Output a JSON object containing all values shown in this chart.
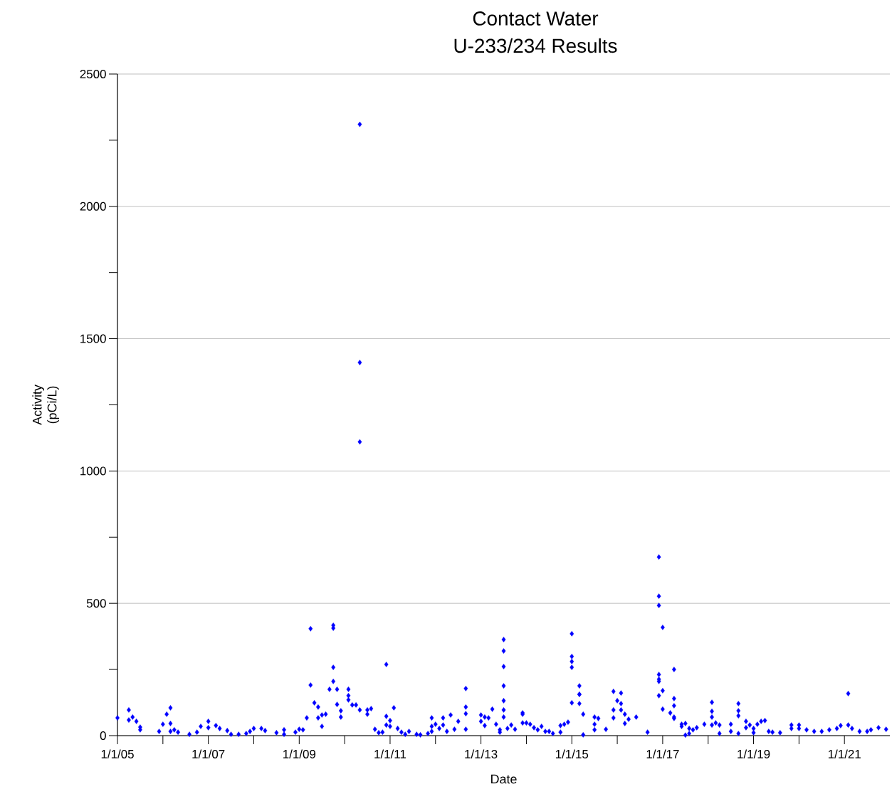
{
  "chart_data": {
    "type": "scatter",
    "title": "Contact Water",
    "subtitle": "U-233/234 Results",
    "xlabel": "Date",
    "ylabel": "Activity (pCi/L)",
    "xlim": [
      "2005-01-01",
      "2022-01-01"
    ],
    "ylim": [
      0,
      2500
    ],
    "xticks": [
      {
        "value": "2005-01-01",
        "label": "1/1/05"
      },
      {
        "value": "2006-01-01",
        "label": null
      },
      {
        "value": "2007-01-01",
        "label": "1/1/07"
      },
      {
        "value": "2008-01-01",
        "label": null
      },
      {
        "value": "2009-01-01",
        "label": "1/1/09"
      },
      {
        "value": "2010-01-01",
        "label": null
      },
      {
        "value": "2011-01-01",
        "label": "1/1/11"
      },
      {
        "value": "2012-01-01",
        "label": null
      },
      {
        "value": "2013-01-01",
        "label": "1/1/13"
      },
      {
        "value": "2014-01-01",
        "label": null
      },
      {
        "value": "2015-01-01",
        "label": "1/1/15"
      },
      {
        "value": "2016-01-01",
        "label": null
      },
      {
        "value": "2017-01-01",
        "label": "1/1/17"
      },
      {
        "value": "2018-01-01",
        "label": null
      },
      {
        "value": "2019-01-01",
        "label": "1/1/19"
      },
      {
        "value": "2020-01-01",
        "label": null
      },
      {
        "value": "2021-01-01",
        "label": "1/1/21"
      }
    ],
    "yticks": [
      0,
      {
        "value": 250,
        "label": null
      },
      500,
      {
        "value": 750,
        "label": null
      },
      1000,
      {
        "value": 1250,
        "label": null
      },
      1500,
      {
        "value": 1750,
        "label": null
      },
      2000,
      {
        "value": 2250,
        "label": null
      },
      2500
    ],
    "grid": "y",
    "marker": "diamond",
    "series": [
      {
        "color": "#0000ff",
        "x": [
          "2005-01",
          "2005-04",
          "2005-04",
          "2005-05",
          "2005-06",
          "2005-07",
          "2005-07",
          "2005-12",
          "2006-01",
          "2006-02",
          "2006-03",
          "2006-03",
          "2006-03",
          "2006-04",
          "2006-05",
          "2006-08",
          "2006-10",
          "2006-11",
          "2007-01",
          "2007-01",
          "2007-03",
          "2007-04",
          "2007-06",
          "2007-07",
          "2007-09",
          "2007-11",
          "2007-12",
          "2008-01",
          "2008-03",
          "2008-04",
          "2008-07",
          "2008-09",
          "2008-09",
          "2008-12",
          "2009-01",
          "2009-02",
          "2009-03",
          "2009-04",
          "2009-04",
          "2009-05",
          "2009-06",
          "2009-06",
          "2009-07",
          "2009-07",
          "2009-08",
          "2009-10",
          "2009-10",
          "2009-10",
          "2009-10",
          "2009-09",
          "2009-11",
          "2009-11",
          "2009-12",
          "2009-12",
          "2010-02",
          "2010-02",
          "2010-02",
          "2010-03",
          "2010-04",
          "2010-05",
          "2010-05",
          "2010-05",
          "2010-05",
          "2010-07",
          "2010-08",
          "2010-07",
          "2010-09",
          "2010-10",
          "2010-11",
          "2010-12",
          "2010-12",
          "2010-12",
          "2011-01",
          "2011-01",
          "2011-02",
          "2011-03",
          "2011-04",
          "2011-05",
          "2011-06",
          "2011-08",
          "2011-09",
          "2011-11",
          "2011-12",
          "2011-12",
          "2011-12",
          "2012-01",
          "2012-02",
          "2012-03",
          "2012-03",
          "2012-04",
          "2012-05",
          "2012-06",
          "2012-07",
          "2012-09",
          "2012-09",
          "2012-09",
          "2012-09",
          "2013-01",
          "2013-01",
          "2013-02",
          "2013-02",
          "2013-03",
          "2013-04",
          "2013-05",
          "2013-06",
          "2013-06",
          "2013-07",
          "2013-07",
          "2013-07",
          "2013-07",
          "2013-07",
          "2013-07",
          "2013-07",
          "2013-08",
          "2013-09",
          "2013-10",
          "2013-12",
          "2013-12",
          "2013-12",
          "2014-01",
          "2014-02",
          "2014-03",
          "2014-04",
          "2014-05",
          "2014-06",
          "2014-07",
          "2014-08",
          "2014-10",
          "2014-10",
          "2014-11",
          "2014-12",
          "2015-01",
          "2015-01",
          "2015-01",
          "2015-01",
          "2015-01",
          "2015-03",
          "2015-03",
          "2015-03",
          "2015-03",
          "2015-04",
          "2015-04",
          "2015-07",
          "2015-08",
          "2015-07",
          "2015-07",
          "2015-10",
          "2015-12",
          "2015-12",
          "2016-02",
          "2016-01",
          "2016-02",
          "2015-12",
          "2016-02",
          "2016-03",
          "2016-03",
          "2016-04",
          "2016-06",
          "2016-09",
          "2016-12",
          "2016-12",
          "2016-12",
          "2017-01",
          "2016-12",
          "2016-12",
          "2016-12",
          "2017-01",
          "2016-12",
          "2017-04",
          "2017-04",
          "2017-04",
          "2017-01",
          "2017-03",
          "2017-04",
          "2017-04",
          "2017-06",
          "2017-06",
          "2017-07",
          "2017-08",
          "2017-07",
          "2017-08",
          "2017-09",
          "2017-10",
          "2017-12",
          "2018-02",
          "2018-02",
          "2018-02",
          "2018-02",
          "2018-03",
          "2018-04",
          "2018-04",
          "2018-07",
          "2018-07",
          "2018-09",
          "2018-09",
          "2018-09",
          "2018-09",
          "2018-11",
          "2018-11",
          "2018-12",
          "2019-01",
          "2019-02",
          "2019-03",
          "2019-04",
          "2019-01",
          "2019-05",
          "2019-06",
          "2019-08",
          "2019-11",
          "2019-11",
          "2020-01",
          "2020-01",
          "2020-03",
          "2020-05",
          "2020-07",
          "2020-09",
          "2020-11",
          "2020-12",
          "2021-02",
          "2021-02",
          "2021-03",
          "2021-05",
          "2021-07",
          "2021-08",
          "2021-10",
          "2021-12"
        ],
        "values": [
          67,
          97,
          59,
          70,
          54,
          32,
          22,
          16,
          43,
          81,
          105,
          46,
          16,
          22,
          13,
          5,
          13,
          35,
          30,
          54,
          38,
          27,
          19,
          5,
          5,
          8,
          16,
          27,
          27,
          19,
          11,
          5,
          22,
          13,
          24,
          22,
          67,
          404,
          191,
          124,
          108,
          67,
          78,
          35,
          81,
          417,
          406,
          258,
          205,
          175,
          175,
          118,
          70,
          94,
          175,
          151,
          135,
          116,
          116,
          97,
          2310,
          1410,
          1110,
          97,
          102,
          81,
          24,
          11,
          13,
          40,
          73,
          269,
          57,
          35,
          105,
          27,
          13,
          5,
          16,
          5,
          3,
          8,
          67,
          35,
          16,
          43,
          27,
          67,
          40,
          16,
          78,
          24,
          54,
          24,
          178,
          108,
          83,
          78,
          54,
          38,
          70,
          67,
          100,
          43,
          22,
          13,
          363,
          320,
          261,
          188,
          132,
          70,
          97,
          27,
          40,
          24,
          86,
          81,
          48,
          48,
          43,
          30,
          22,
          35,
          16,
          16,
          8,
          13,
          38,
          43,
          51,
          385,
          299,
          280,
          258,
          124,
          188,
          156,
          156,
          121,
          81,
          3,
          70,
          65,
          43,
          22,
          24,
          97,
          167,
          161,
          132,
          121,
          67,
          97,
          81,
          46,
          62,
          70,
          13,
          675,
          527,
          492,
          409,
          231,
          213,
          205,
          170,
          151,
          250,
          140,
          113,
          100,
          86,
          65,
          70,
          43,
          35,
          46,
          27,
          2,
          8,
          22,
          30,
          43,
          126,
          92,
          70,
          40,
          48,
          40,
          8,
          43,
          16,
          121,
          94,
          75,
          8,
          54,
          30,
          40,
          27,
          43,
          54,
          57,
          11,
          16,
          13,
          11,
          40,
          27,
          40,
          27,
          22,
          16,
          16,
          22,
          27,
          38,
          159,
          40,
          27,
          16,
          16,
          22,
          30,
          24
        ]
      }
    ]
  }
}
